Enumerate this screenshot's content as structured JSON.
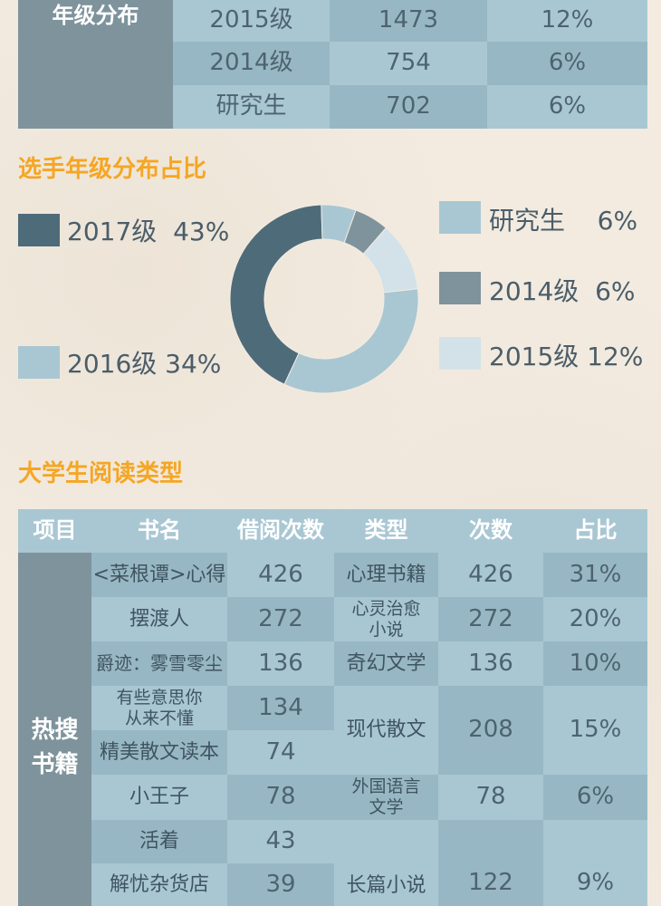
{
  "grade_table": {
    "side_label": "年级分布",
    "rows": [
      {
        "grade": "2015级",
        "count": "1473",
        "pct": "12%"
      },
      {
        "grade": "2014级",
        "count": "754",
        "pct": "6%"
      },
      {
        "grade": "研究生",
        "count": "702",
        "pct": "6%"
      }
    ]
  },
  "grade_chart": {
    "section_title": "选手年级分布占比",
    "legend": [
      {
        "label": "2017级",
        "pct": "43%"
      },
      {
        "label": "2016级",
        "pct": "34%"
      },
      {
        "label": "研究生",
        "pct": "6%"
      },
      {
        "label": "2014级",
        "pct": "6%"
      },
      {
        "label": "2015级",
        "pct": "12%"
      }
    ]
  },
  "chart_data": {
    "type": "pie",
    "title": "选手年级分布占比",
    "categories": [
      "2017级",
      "研究生",
      "2014级",
      "2015级",
      "2016级"
    ],
    "values": [
      43,
      6,
      6,
      12,
      34
    ],
    "colors": [
      "#4e6b7a",
      "#a9c7d3",
      "#7e939c",
      "#d3e2e8",
      "#a9c7d3"
    ],
    "donut": true,
    "legend_placement": "left-and-right"
  },
  "reading": {
    "section_title": "大学生阅读类型",
    "headers": [
      "项目",
      "书名",
      "借阅次数",
      "类型",
      "次数",
      "占比"
    ],
    "side_label": "热搜书籍",
    "books": [
      {
        "title": "<菜根谭>心得",
        "count": "426"
      },
      {
        "title": "摆渡人",
        "count": "272"
      },
      {
        "title": "爵迹：雾雪零尘",
        "count": "136"
      },
      {
        "title": "有些意思你从来不懂",
        "count": "134"
      },
      {
        "title": "精美散文读本",
        "count": "74"
      },
      {
        "title": "小王子",
        "count": "78"
      },
      {
        "title": "活着",
        "count": "43"
      },
      {
        "title": "解忧杂货店",
        "count": "39"
      }
    ],
    "types": [
      {
        "type": "心理书籍",
        "count": "426",
        "pct": "31%"
      },
      {
        "type": "心灵治愈小说",
        "count": "272",
        "pct": "20%"
      },
      {
        "type": "奇幻文学",
        "count": "136",
        "pct": "10%"
      },
      {
        "type": "现代散文",
        "count": "208",
        "pct": "15%"
      },
      {
        "type": "外国语言文学",
        "count": "78",
        "pct": "6%"
      },
      {
        "type": "长篇小说",
        "count": "122",
        "pct": "9%"
      }
    ]
  }
}
